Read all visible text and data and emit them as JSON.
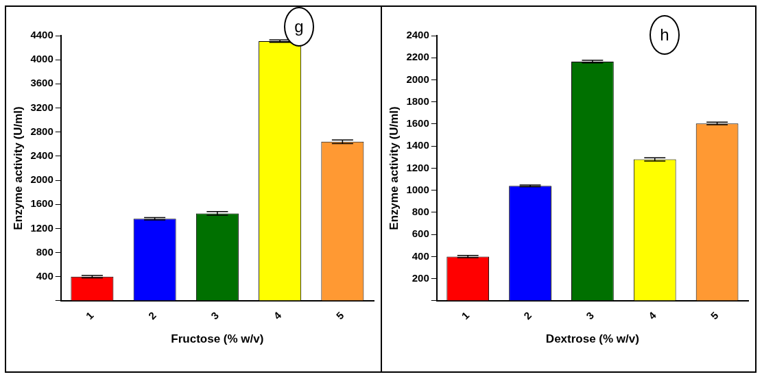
{
  "chart_data": [
    {
      "type": "bar",
      "categories": [
        "1",
        "2",
        "3",
        "4",
        "5"
      ],
      "values": [
        400,
        1360,
        1450,
        4310,
        2640
      ],
      "errors": [
        20,
        20,
        30,
        20,
        30
      ],
      "colors": [
        "#ff0000",
        "#0000ff",
        "#007000",
        "#ffff00",
        "#ff9933"
      ],
      "xlabel": "Fructose (% w/v)",
      "ylabel": "Enzyme activity (U/ml)",
      "ylim": [
        0,
        4400
      ],
      "yticks": [
        {
          "value": 0,
          "label": null
        },
        400,
        800,
        1200,
        1600,
        2000,
        2400,
        2800,
        3200,
        3600,
        4000,
        4400
      ],
      "annotations": [
        "g"
      ],
      "grid": false,
      "legend": false
    },
    {
      "type": "bar",
      "categories": [
        "1",
        "2",
        "3",
        "4",
        "5"
      ],
      "values": [
        400,
        1040,
        2165,
        1280,
        1605
      ],
      "errors": [
        10,
        8,
        12,
        15,
        12
      ],
      "colors": [
        "#ff0000",
        "#0000ff",
        "#007000",
        "#ffff00",
        "#ff9933"
      ],
      "xlabel": "Dextrose (% w/v)",
      "ylabel": "Enzyme activity (U/ml)",
      "ylim": [
        0,
        2400
      ],
      "yticks": [
        {
          "value": 0,
          "label": null
        },
        200,
        400,
        600,
        800,
        1000,
        1200,
        1400,
        1600,
        1800,
        2000,
        2200,
        2400
      ],
      "annotations": [
        "h"
      ],
      "grid": false,
      "legend": false
    }
  ]
}
